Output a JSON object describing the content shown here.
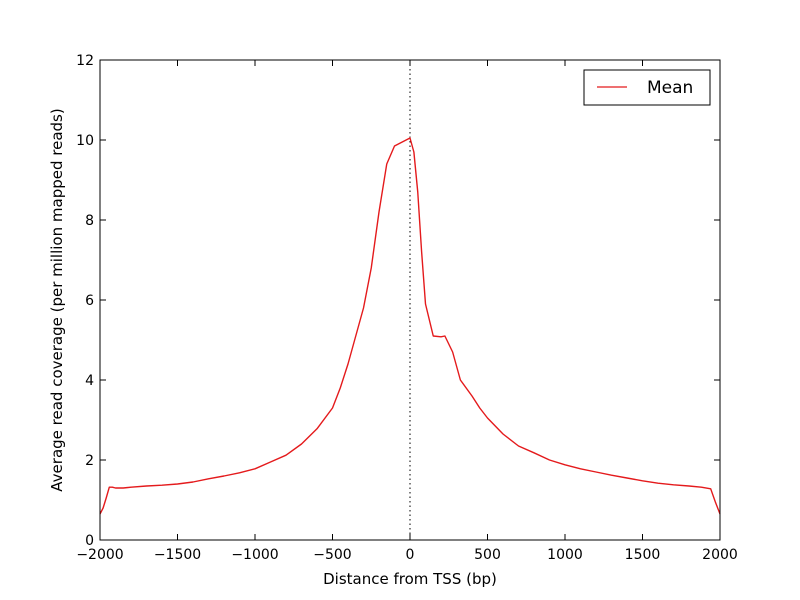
{
  "chart_data": {
    "type": "line",
    "title": "",
    "xlabel": "Distance from TSS (bp)",
    "ylabel": "Average read coverage (per million mapped reads)",
    "xlim": [
      -2000,
      2000
    ],
    "ylim": [
      0,
      12
    ],
    "xticks": [
      -2000,
      -1500,
      -1000,
      -500,
      0,
      500,
      1000,
      1500,
      2000
    ],
    "xtick_labels": [
      "−2000",
      "−1500",
      "−1000",
      "−500",
      "0",
      "500",
      "1000",
      "1500",
      "2000"
    ],
    "yticks": [
      0,
      2,
      4,
      6,
      8,
      10,
      12
    ],
    "ytick_labels": [
      "0",
      "2",
      "4",
      "6",
      "8",
      "10",
      "12"
    ],
    "grid": false,
    "legend": {
      "position": "top-right",
      "entries": [
        "Mean"
      ]
    },
    "vline": {
      "x": 0,
      "style": "dotted",
      "color": "#000000"
    },
    "series": [
      {
        "name": "Mean",
        "color": "#e41a1c",
        "points": [
          [
            -2000,
            0.65
          ],
          [
            -1980,
            0.8
          ],
          [
            -1960,
            1.05
          ],
          [
            -1940,
            1.32
          ],
          [
            -1920,
            1.32
          ],
          [
            -1900,
            1.3
          ],
          [
            -1850,
            1.3
          ],
          [
            -1800,
            1.32
          ],
          [
            -1700,
            1.35
          ],
          [
            -1600,
            1.37
          ],
          [
            -1500,
            1.4
          ],
          [
            -1400,
            1.45
          ],
          [
            -1300,
            1.53
          ],
          [
            -1200,
            1.6
          ],
          [
            -1100,
            1.68
          ],
          [
            -1000,
            1.78
          ],
          [
            -900,
            1.95
          ],
          [
            -800,
            2.12
          ],
          [
            -700,
            2.4
          ],
          [
            -600,
            2.78
          ],
          [
            -500,
            3.3
          ],
          [
            -450,
            3.8
          ],
          [
            -400,
            4.4
          ],
          [
            -350,
            5.1
          ],
          [
            -300,
            5.8
          ],
          [
            -250,
            6.8
          ],
          [
            -200,
            8.2
          ],
          [
            -150,
            9.4
          ],
          [
            -100,
            9.85
          ],
          [
            -50,
            9.95
          ],
          [
            0,
            10.05
          ],
          [
            25,
            9.7
          ],
          [
            50,
            8.7
          ],
          [
            75,
            7.2
          ],
          [
            100,
            5.9
          ],
          [
            150,
            5.1
          ],
          [
            200,
            5.08
          ],
          [
            225,
            5.1
          ],
          [
            275,
            4.7
          ],
          [
            325,
            4.0
          ],
          [
            400,
            3.6
          ],
          [
            450,
            3.3
          ],
          [
            500,
            3.05
          ],
          [
            600,
            2.65
          ],
          [
            700,
            2.35
          ],
          [
            800,
            2.18
          ],
          [
            900,
            2.0
          ],
          [
            1000,
            1.88
          ],
          [
            1100,
            1.78
          ],
          [
            1200,
            1.7
          ],
          [
            1300,
            1.62
          ],
          [
            1400,
            1.55
          ],
          [
            1500,
            1.48
          ],
          [
            1600,
            1.42
          ],
          [
            1700,
            1.38
          ],
          [
            1800,
            1.35
          ],
          [
            1880,
            1.32
          ],
          [
            1940,
            1.28
          ],
          [
            1970,
            0.95
          ],
          [
            2000,
            0.65
          ]
        ]
      }
    ]
  }
}
